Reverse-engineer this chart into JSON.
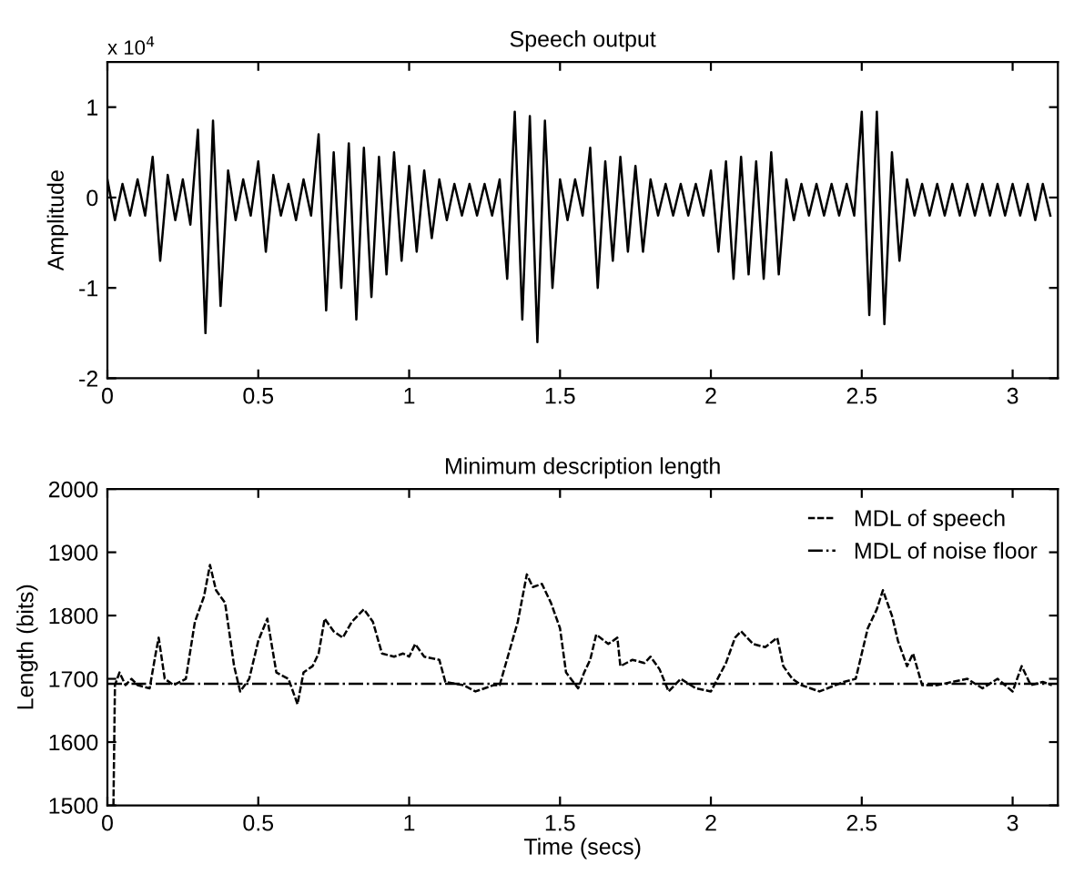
{
  "chart_data": [
    {
      "type": "line",
      "title": "Speech output",
      "ylabel": "Amplitude",
      "annotations": [
        "x 10$^{4}$"
      ],
      "xlim": [
        0,
        3.15
      ],
      "ylim": [
        -2,
        1.5
      ],
      "xticks": [
        0,
        0.5,
        1,
        1.5,
        2,
        2.5,
        3
      ],
      "yticks": [
        -2,
        -1,
        0,
        1
      ],
      "series": [
        {
          "color": "#000000",
          "x": [
            0.0,
            0.025,
            0.05,
            0.075,
            0.1,
            0.125,
            0.15,
            0.175,
            0.2,
            0.225,
            0.25,
            0.275,
            0.3,
            0.325,
            0.35,
            0.375,
            0.4,
            0.425,
            0.45,
            0.475,
            0.5,
            0.525,
            0.55,
            0.575,
            0.6,
            0.625,
            0.65,
            0.675,
            0.7,
            0.725,
            0.75,
            0.775,
            0.8,
            0.825,
            0.85,
            0.875,
            0.9,
            0.925,
            0.95,
            0.975,
            1.0,
            1.025,
            1.05,
            1.075,
            1.1,
            1.125,
            1.15,
            1.175,
            1.2,
            1.225,
            1.25,
            1.275,
            1.3,
            1.325,
            1.35,
            1.375,
            1.4,
            1.425,
            1.45,
            1.475,
            1.5,
            1.525,
            1.55,
            1.575,
            1.6,
            1.625,
            1.65,
            1.675,
            1.7,
            1.725,
            1.75,
            1.775,
            1.8,
            1.825,
            1.85,
            1.875,
            1.9,
            1.925,
            1.95,
            1.975,
            2.0,
            2.025,
            2.05,
            2.075,
            2.1,
            2.125,
            2.15,
            2.175,
            2.2,
            2.225,
            2.25,
            2.275,
            2.3,
            2.325,
            2.35,
            2.375,
            2.4,
            2.425,
            2.45,
            2.475,
            2.5,
            2.525,
            2.55,
            2.575,
            2.6,
            2.625,
            2.65,
            2.675,
            2.7,
            2.725,
            2.75,
            2.775,
            2.8,
            2.825,
            2.85,
            2.875,
            2.9,
            2.925,
            2.95,
            2.975,
            3.0,
            3.025,
            3.05,
            3.075,
            3.1,
            3.125
          ],
          "values": [
            0.2,
            -0.25,
            0.15,
            -0.2,
            0.2,
            -0.2,
            0.45,
            -0.7,
            0.25,
            -0.25,
            0.2,
            -0.3,
            0.75,
            -1.5,
            0.85,
            -1.2,
            0.3,
            -0.25,
            0.2,
            -0.2,
            0.4,
            -0.6,
            0.25,
            -0.2,
            0.15,
            -0.25,
            0.2,
            -0.2,
            0.7,
            -1.25,
            0.5,
            -1.0,
            0.6,
            -1.35,
            0.55,
            -1.1,
            0.45,
            -0.85,
            0.5,
            -0.7,
            0.35,
            -0.6,
            0.3,
            -0.45,
            0.2,
            -0.25,
            0.15,
            -0.2,
            0.15,
            -0.2,
            0.15,
            -0.2,
            0.2,
            -0.9,
            0.95,
            -1.35,
            0.9,
            -1.6,
            0.85,
            -1.0,
            0.2,
            -0.25,
            0.2,
            -0.2,
            0.55,
            -1.0,
            0.4,
            -0.7,
            0.45,
            -0.6,
            0.35,
            -0.6,
            0.2,
            -0.2,
            0.15,
            -0.2,
            0.15,
            -0.2,
            0.15,
            -0.2,
            0.3,
            -0.6,
            0.4,
            -0.9,
            0.45,
            -0.85,
            0.4,
            -0.9,
            0.5,
            -0.85,
            0.2,
            -0.25,
            0.15,
            -0.2,
            0.15,
            -0.2,
            0.15,
            -0.2,
            0.15,
            -0.2,
            0.95,
            -1.3,
            0.95,
            -1.4,
            0.5,
            -0.7,
            0.2,
            -0.2,
            0.15,
            -0.2,
            0.15,
            -0.2,
            0.15,
            -0.2,
            0.15,
            -0.2,
            0.15,
            -0.2,
            0.15,
            -0.2,
            0.15,
            -0.2,
            0.15,
            -0.25,
            0.15,
            -0.2
          ]
        }
      ]
    },
    {
      "type": "line",
      "title": "Minimum description length",
      "xlabel": "Time (secs)",
      "ylabel": "Length (bits)",
      "xlim": [
        0,
        3.15
      ],
      "ylim": [
        1500,
        2000
      ],
      "xticks": [
        0,
        0.5,
        1,
        1.5,
        2,
        2.5,
        3
      ],
      "yticks": [
        1500,
        1600,
        1700,
        1800,
        1900,
        2000
      ],
      "legend": "top right",
      "series": [
        {
          "name": "MDL of speech",
          "color": "#000000",
          "line_style": "dashed",
          "x": [
            0.02,
            0.025,
            0.04,
            0.06,
            0.08,
            0.1,
            0.14,
            0.16,
            0.17,
            0.19,
            0.22,
            0.26,
            0.29,
            0.32,
            0.34,
            0.36,
            0.39,
            0.42,
            0.44,
            0.47,
            0.5,
            0.53,
            0.56,
            0.6,
            0.63,
            0.65,
            0.68,
            0.7,
            0.72,
            0.75,
            0.78,
            0.81,
            0.85,
            0.88,
            0.91,
            0.95,
            0.98,
            1.0,
            1.02,
            1.05,
            1.1,
            1.12,
            1.18,
            1.22,
            1.28,
            1.3,
            1.33,
            1.36,
            1.39,
            1.41,
            1.44,
            1.47,
            1.5,
            1.52,
            1.56,
            1.58,
            1.6,
            1.62,
            1.66,
            1.69,
            1.7,
            1.74,
            1.78,
            1.8,
            1.83,
            1.86,
            1.9,
            1.95,
            2.0,
            2.05,
            2.08,
            2.1,
            2.14,
            2.18,
            2.22,
            2.24,
            2.27,
            2.3,
            2.36,
            2.44,
            2.48,
            2.52,
            2.55,
            2.57,
            2.6,
            2.62,
            2.65,
            2.67,
            2.7,
            2.75,
            2.85,
            2.9,
            2.95,
            3.0,
            3.03,
            3.06,
            3.1,
            3.13
          ],
          "values": [
            1500,
            1690,
            1710,
            1690,
            1700,
            1690,
            1685,
            1740,
            1765,
            1700,
            1690,
            1700,
            1790,
            1830,
            1880,
            1840,
            1820,
            1720,
            1680,
            1700,
            1760,
            1795,
            1710,
            1700,
            1660,
            1710,
            1720,
            1740,
            1795,
            1775,
            1765,
            1790,
            1810,
            1790,
            1740,
            1735,
            1740,
            1735,
            1755,
            1735,
            1730,
            1695,
            1690,
            1680,
            1690,
            1690,
            1740,
            1790,
            1865,
            1845,
            1850,
            1820,
            1780,
            1710,
            1685,
            1710,
            1730,
            1770,
            1755,
            1765,
            1720,
            1730,
            1725,
            1735,
            1715,
            1680,
            1700,
            1685,
            1680,
            1725,
            1765,
            1775,
            1755,
            1750,
            1765,
            1720,
            1700,
            1690,
            1680,
            1695,
            1700,
            1780,
            1810,
            1840,
            1800,
            1760,
            1720,
            1740,
            1690,
            1690,
            1700,
            1685,
            1700,
            1680,
            1720,
            1690,
            1695,
            1690
          ]
        },
        {
          "name": "MDL of noise floor",
          "color": "#000000",
          "line_style": "dashdot",
          "x": [
            0,
            3.15
          ],
          "values": [
            1692,
            1692
          ]
        }
      ]
    }
  ]
}
